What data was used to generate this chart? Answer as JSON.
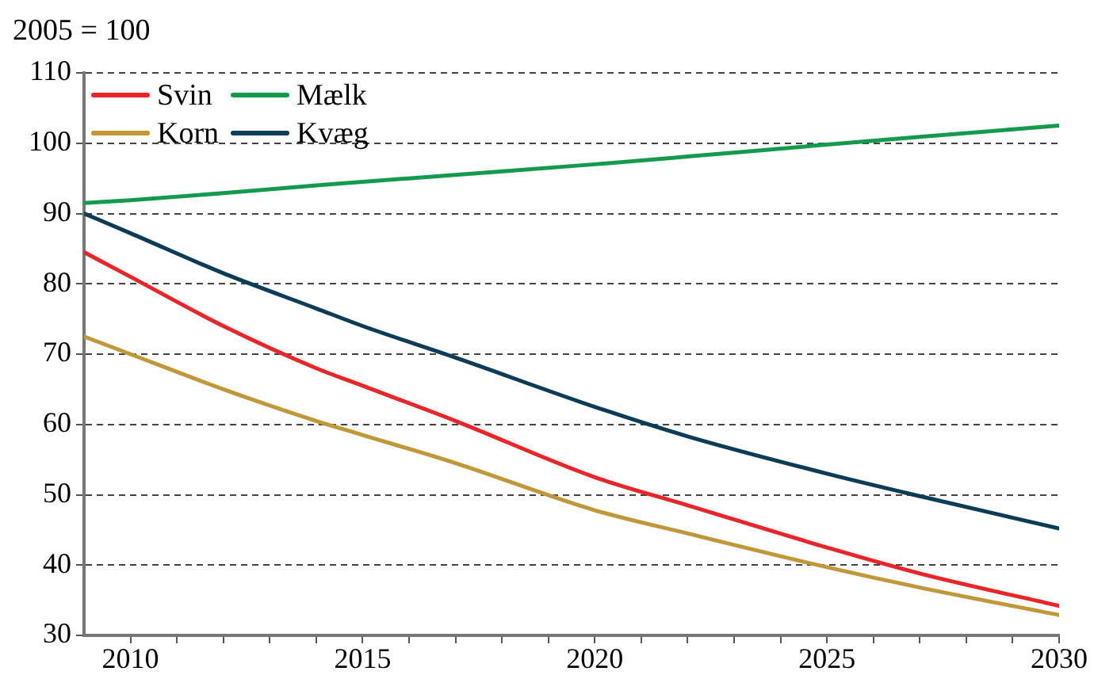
{
  "chart_data": {
    "type": "line",
    "ylabel": "2005 = 100",
    "xlim": [
      2009,
      2030
    ],
    "xticks": [
      {
        "value": 2010,
        "label": "2010"
      },
      {
        "value": 2011,
        "label": null
      },
      {
        "value": 2012,
        "label": null
      },
      {
        "value": 2013,
        "label": null
      },
      {
        "value": 2014,
        "label": null
      },
      {
        "value": 2015,
        "label": "2015"
      },
      {
        "value": 2016,
        "label": null
      },
      {
        "value": 2017,
        "label": null
      },
      {
        "value": 2018,
        "label": null
      },
      {
        "value": 2019,
        "label": null
      },
      {
        "value": 2020,
        "label": "2020"
      },
      {
        "value": 2021,
        "label": null
      },
      {
        "value": 2022,
        "label": null
      },
      {
        "value": 2023,
        "label": null
      },
      {
        "value": 2024,
        "label": null
      },
      {
        "value": 2025,
        "label": "2025"
      },
      {
        "value": 2026,
        "label": null
      },
      {
        "value": 2027,
        "label": null
      },
      {
        "value": 2028,
        "label": null
      },
      {
        "value": 2029,
        "label": null
      },
      {
        "value": 2030,
        "label": "2030"
      }
    ],
    "ylim": [
      30,
      110
    ],
    "yticks": [
      30,
      40,
      50,
      60,
      70,
      80,
      90,
      100,
      110
    ],
    "x": [
      2009,
      2010,
      2012,
      2014,
      2015,
      2017,
      2020,
      2022,
      2025,
      2027,
      2030
    ],
    "series": [
      {
        "name": "Svin",
        "color": "#e8262a",
        "values": [
          84.5,
          81,
          74,
          68,
          65.5,
          60.5,
          52.5,
          48.5,
          42.5,
          38.8,
          34.2
        ]
      },
      {
        "name": "Mælk",
        "color": "#149a4c",
        "values": [
          91.5,
          91.9,
          92.9,
          94,
          94.5,
          95.5,
          97,
          98.1,
          99.8,
          100.9,
          102.5
        ]
      },
      {
        "name": "Korn",
        "color": "#c0983a",
        "values": [
          72.5,
          70,
          65,
          60.5,
          58.5,
          54.5,
          47.8,
          44.5,
          39.7,
          36.8,
          32.9
        ]
      },
      {
        "name": "Kvæg",
        "color": "#0d3d56",
        "values": [
          90,
          87.2,
          81.5,
          76.5,
          74,
          69.5,
          62.5,
          58.3,
          53,
          49.8,
          45.2
        ]
      }
    ],
    "grid": "y",
    "legend": "top left",
    "marker": "none",
    "line_style": "solid"
  }
}
